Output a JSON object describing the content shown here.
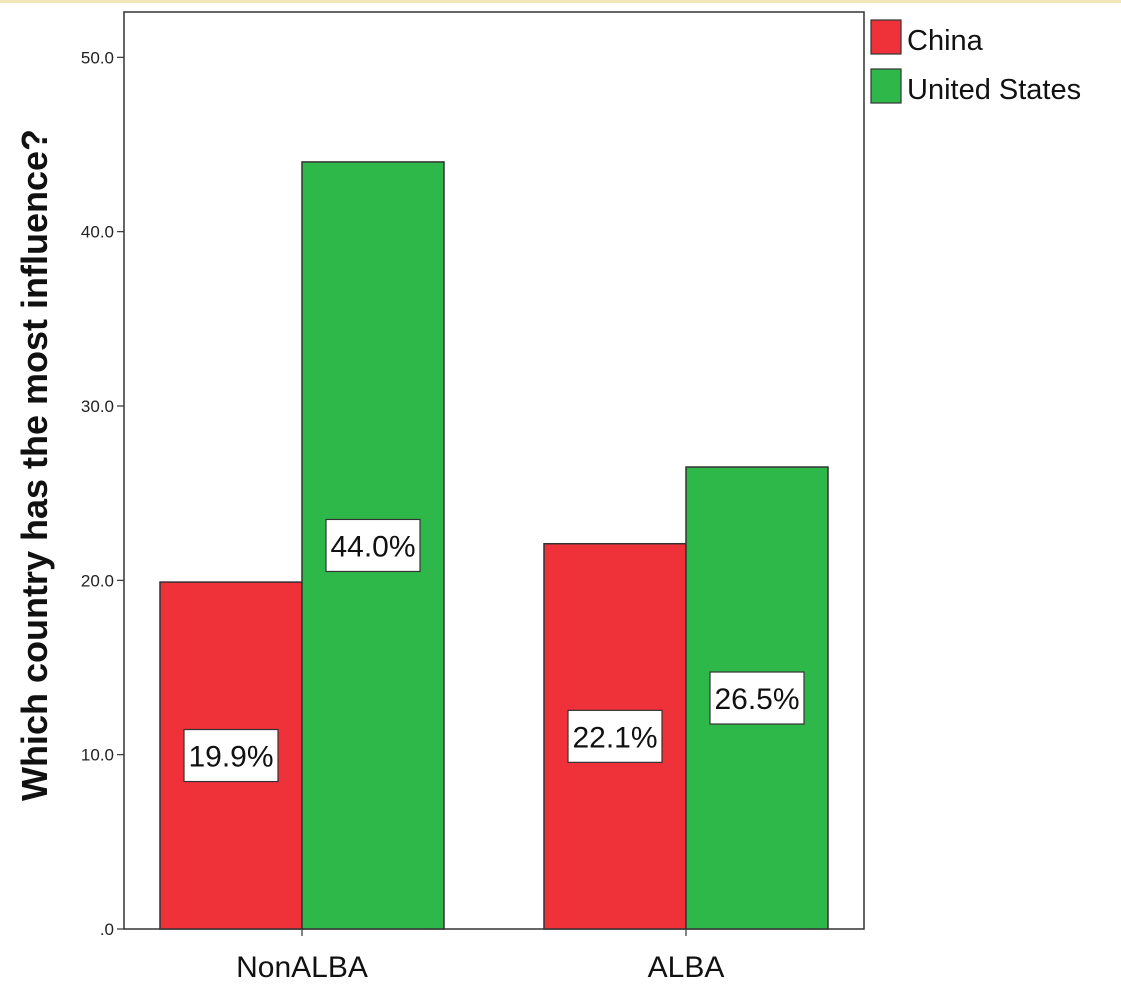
{
  "chart_data": {
    "type": "bar",
    "title": "",
    "xlabel": "",
    "ylabel": "Which country has the most influence?",
    "categories": [
      "NonALBA",
      "ALBA"
    ],
    "series": [
      {
        "name": "China",
        "color": "#ef3139",
        "values": [
          19.9,
          22.1
        ],
        "labels": [
          "19.9%",
          "22.1%"
        ]
      },
      {
        "name": "United States",
        "color": "#2fb84a",
        "values": [
          44.0,
          26.5
        ],
        "labels": [
          "44.0%",
          "26.5%"
        ]
      }
    ],
    "ylim": [
      0,
      52.6
    ],
    "yticks": [
      {
        "value": 0,
        "label": ".0"
      },
      {
        "value": 10,
        "label": "10.0"
      },
      {
        "value": 20,
        "label": "20.0"
      },
      {
        "value": 30,
        "label": "30.0"
      },
      {
        "value": 40,
        "label": "40.0"
      },
      {
        "value": 50,
        "label": "50.0"
      }
    ],
    "legend_position": "top-right",
    "grid": false
  }
}
